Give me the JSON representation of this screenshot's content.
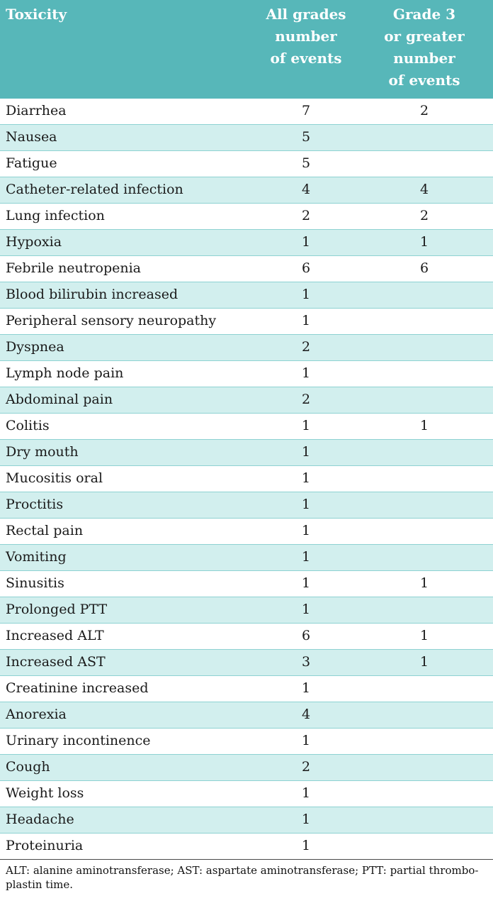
{
  "colors": {
    "header_bg": "#57b7b9",
    "header_text": "#ffffff",
    "stripe_bg": "#d2efee",
    "stripe_border": "#8ed2d2",
    "body_text": "#1a1a1a",
    "footnote_rule": "#4a4a4a"
  },
  "table": {
    "headers": [
      "Toxicity",
      "All grades\nnumber\nof events",
      "Grade 3\nor greater\nnumber\nof events"
    ],
    "rows": [
      {
        "toxicity": "Diarrhea",
        "all_grades": "7",
        "grade3": "2"
      },
      {
        "toxicity": "Nausea",
        "all_grades": "5",
        "grade3": ""
      },
      {
        "toxicity": "Fatigue",
        "all_grades": "5",
        "grade3": ""
      },
      {
        "toxicity": "Catheter-related infection",
        "all_grades": "4",
        "grade3": "4"
      },
      {
        "toxicity": "Lung infection",
        "all_grades": "2",
        "grade3": "2"
      },
      {
        "toxicity": "Hypoxia",
        "all_grades": "1",
        "grade3": "1"
      },
      {
        "toxicity": "Febrile neutropenia",
        "all_grades": "6",
        "grade3": "6"
      },
      {
        "toxicity": "Blood bilirubin increased",
        "all_grades": "1",
        "grade3": ""
      },
      {
        "toxicity": "Peripheral sensory neuropathy",
        "all_grades": "1",
        "grade3": ""
      },
      {
        "toxicity": "Dyspnea",
        "all_grades": "2",
        "grade3": ""
      },
      {
        "toxicity": "Lymph node pain",
        "all_grades": "1",
        "grade3": ""
      },
      {
        "toxicity": "Abdominal pain",
        "all_grades": "2",
        "grade3": ""
      },
      {
        "toxicity": "Colitis",
        "all_grades": "1",
        "grade3": "1"
      },
      {
        "toxicity": "Dry mouth",
        "all_grades": "1",
        "grade3": ""
      },
      {
        "toxicity": "Mucositis oral",
        "all_grades": "1",
        "grade3": ""
      },
      {
        "toxicity": "Proctitis",
        "all_grades": "1",
        "grade3": ""
      },
      {
        "toxicity": "Rectal pain",
        "all_grades": "1",
        "grade3": ""
      },
      {
        "toxicity": "Vomiting",
        "all_grades": "1",
        "grade3": ""
      },
      {
        "toxicity": "Sinusitis",
        "all_grades": "1",
        "grade3": "1"
      },
      {
        "toxicity": "Prolonged PTT",
        "all_grades": "1",
        "grade3": ""
      },
      {
        "toxicity": "Increased ALT",
        "all_grades": "6",
        "grade3": "1"
      },
      {
        "toxicity": "Increased AST",
        "all_grades": "3",
        "grade3": "1"
      },
      {
        "toxicity": "Creatinine increased",
        "all_grades": "1",
        "grade3": ""
      },
      {
        "toxicity": "Anorexia",
        "all_grades": "4",
        "grade3": ""
      },
      {
        "toxicity": "Urinary incontinence",
        "all_grades": "1",
        "grade3": ""
      },
      {
        "toxicity": "Cough",
        "all_grades": "2",
        "grade3": ""
      },
      {
        "toxicity": "Weight loss",
        "all_grades": "1",
        "grade3": ""
      },
      {
        "toxicity": "Headache",
        "all_grades": "1",
        "grade3": ""
      },
      {
        "toxicity": "Proteinuria",
        "all_grades": "1",
        "grade3": ""
      }
    ]
  },
  "footnote": "ALT: alanine aminotransferase; AST: aspartate aminotransferase; PTT: partial thrombo-\nplastin time."
}
